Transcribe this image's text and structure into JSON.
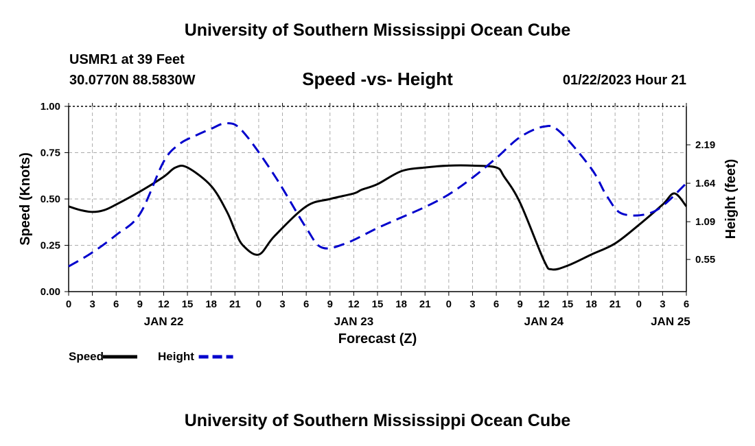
{
  "page": {
    "top_title": "University of Southern Mississippi Ocean Cube",
    "bottom_title": "University of Southern Mississippi Ocean Cube",
    "station": "USMR1 at 39 Feet",
    "coordinates": "30.0770N  88.5830W",
    "subtitle": "Speed -vs- Height",
    "timestamp": "01/22/2023 Hour 21"
  },
  "chart_data": {
    "type": "line",
    "title": "Speed -vs- Height",
    "xlabel": "Forecast (Z)",
    "ylabel": "Speed (Knots)",
    "ylabel_right": "Height (feet)",
    "grid": true,
    "x_range": [
      0,
      78
    ],
    "x_ticks": [
      0,
      3,
      6,
      9,
      12,
      15,
      18,
      21,
      24,
      27,
      30,
      33,
      36,
      39,
      42,
      45,
      48,
      51,
      54,
      57,
      60,
      63,
      66,
      69,
      72,
      75,
      78
    ],
    "x_tick_labels": [
      "0",
      "3",
      "6",
      "9",
      "12",
      "15",
      "18",
      "21",
      "0",
      "3",
      "6",
      "9",
      "12",
      "15",
      "18",
      "21",
      "0",
      "3",
      "6",
      "9",
      "12",
      "15",
      "18",
      "21",
      "0",
      "3",
      "6"
    ],
    "date_labels": [
      {
        "x": 12,
        "label": "JAN 22"
      },
      {
        "x": 36,
        "label": "JAN 23"
      },
      {
        "x": 60,
        "label": "JAN 24"
      },
      {
        "x": 76,
        "label": "JAN 25"
      }
    ],
    "y_left": {
      "range": [
        0,
        1.0
      ],
      "ticks": [
        0.0,
        0.25,
        0.5,
        0.75,
        1.0
      ],
      "tick_labels": [
        "0.00",
        "0.25",
        "0.50",
        "0.75",
        "1.00"
      ]
    },
    "y_right": {
      "range": [
        0.09,
        2.74
      ],
      "ticks": [
        0.55,
        1.09,
        1.64,
        2.19
      ],
      "tick_labels": [
        "0.55",
        "1.09",
        "1.64",
        "2.19"
      ]
    },
    "legend": [
      {
        "label": "Speed",
        "color": "#000000",
        "dashed": false
      },
      {
        "label": "Height",
        "color": "#0000cc",
        "dashed": true
      }
    ],
    "series": [
      {
        "name": "Speed",
        "axis": "left",
        "color": "#000000",
        "dashed": false,
        "x": [
          0,
          1.5,
          3,
          4.5,
          6,
          9,
          12,
          13.5,
          15,
          18,
          20,
          21,
          22,
          24,
          26,
          30,
          33,
          36,
          37,
          39,
          42,
          45,
          48,
          51,
          54,
          55,
          57,
          60,
          61,
          63,
          66,
          69,
          72,
          75,
          76.5,
          78
        ],
        "values": [
          0.46,
          0.44,
          0.43,
          0.44,
          0.47,
          0.54,
          0.62,
          0.67,
          0.67,
          0.57,
          0.43,
          0.33,
          0.25,
          0.2,
          0.3,
          0.46,
          0.5,
          0.53,
          0.55,
          0.58,
          0.65,
          0.67,
          0.68,
          0.68,
          0.67,
          0.62,
          0.48,
          0.17,
          0.12,
          0.14,
          0.2,
          0.26,
          0.36,
          0.47,
          0.53,
          0.46
        ]
      },
      {
        "name": "Height",
        "axis": "right",
        "color": "#0000cc",
        "dashed": true,
        "x": [
          0,
          3,
          6,
          9,
          12,
          14,
          16,
          18,
          20,
          22,
          26,
          30,
          32,
          35,
          39,
          42,
          45,
          48,
          51,
          54,
          57,
          60,
          62,
          66,
          68,
          70,
          74,
          78
        ],
        "values": [
          0.45,
          0.65,
          0.9,
          1.2,
          1.95,
          2.2,
          2.32,
          2.42,
          2.5,
          2.38,
          1.75,
          1.0,
          0.72,
          0.78,
          1.0,
          1.15,
          1.3,
          1.48,
          1.72,
          2.0,
          2.3,
          2.45,
          2.38,
          1.85,
          1.45,
          1.2,
          1.24,
          1.64
        ]
      }
    ]
  }
}
